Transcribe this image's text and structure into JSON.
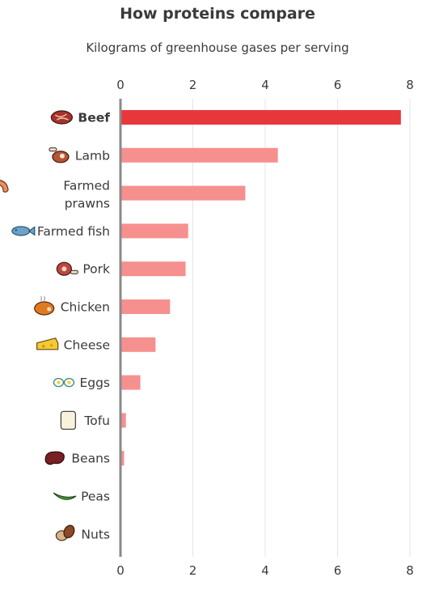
{
  "chart_data": {
    "type": "bar",
    "orientation": "horizontal",
    "title": "How proteins compare",
    "subtitle": "Kilograms of greenhouse gases per serving",
    "xlim": [
      0,
      8
    ],
    "xticks": [
      "0",
      "2",
      "4",
      "6",
      "8"
    ],
    "grid": true,
    "highlight_color": "#e8373b",
    "bar_color": "#f6908f",
    "categories": [
      {
        "label": "Beef",
        "label_lines": [
          "Beef"
        ],
        "value": 7.75,
        "highlight": true,
        "icon": "steak-icon"
      },
      {
        "label": "Lamb",
        "label_lines": [
          "Lamb"
        ],
        "value": 4.35,
        "highlight": false,
        "icon": "lamb-chop-icon"
      },
      {
        "label": "Farmed prawns",
        "label_lines": [
          "Farmed",
          "prawns"
        ],
        "value": 3.45,
        "highlight": false,
        "icon": "prawn-icon"
      },
      {
        "label": "Farmed fish",
        "label_lines": [
          "Farmed fish"
        ],
        "value": 1.87,
        "highlight": false,
        "icon": "fish-icon"
      },
      {
        "label": "Pork",
        "label_lines": [
          "Pork"
        ],
        "value": 1.8,
        "highlight": false,
        "icon": "ham-icon"
      },
      {
        "label": "Chicken",
        "label_lines": [
          "Chicken"
        ],
        "value": 1.37,
        "highlight": false,
        "icon": "roast-chicken-icon"
      },
      {
        "label": "Cheese",
        "label_lines": [
          "Cheese"
        ],
        "value": 0.97,
        "highlight": false,
        "icon": "cheese-icon"
      },
      {
        "label": "Eggs",
        "label_lines": [
          "Eggs"
        ],
        "value": 0.55,
        "highlight": false,
        "icon": "eggs-icon"
      },
      {
        "label": "Tofu",
        "label_lines": [
          "Tofu"
        ],
        "value": 0.15,
        "highlight": false,
        "icon": "tofu-icon"
      },
      {
        "label": "Beans",
        "label_lines": [
          "Beans"
        ],
        "value": 0.1,
        "highlight": false,
        "icon": "bean-icon"
      },
      {
        "label": "Peas",
        "label_lines": [
          "Peas"
        ],
        "value": 0.0,
        "highlight": false,
        "icon": "pea-pod-icon"
      },
      {
        "label": "Nuts",
        "label_lines": [
          "Nuts"
        ],
        "value": 0.0,
        "highlight": false,
        "icon": "nuts-icon"
      }
    ]
  }
}
